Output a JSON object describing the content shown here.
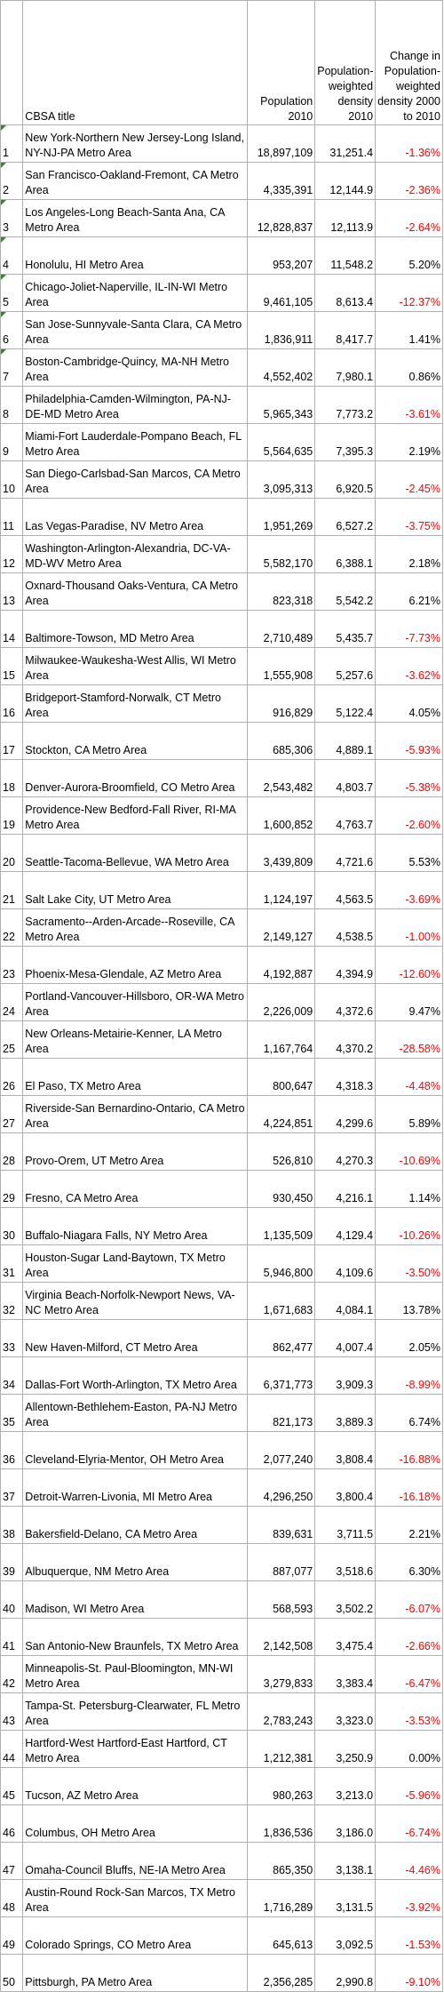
{
  "headers": {
    "rank": "",
    "title": "CBSA title",
    "population": "Population 2010",
    "density": "Population-weighted density 2010",
    "change": "Change in Population-weighted density 2000 to 2010"
  },
  "rows": [
    {
      "rank": "1",
      "title": "New York-Northern New Jersey-Long Island, NY-NJ-PA Metro Area",
      "population": "18,897,109",
      "density": "31,251.4",
      "change": "-1.36%",
      "neg": true
    },
    {
      "rank": "2",
      "title": "San Francisco-Oakland-Fremont, CA Metro Area",
      "population": "4,335,391",
      "density": "12,144.9",
      "change": "-2.36%",
      "neg": true
    },
    {
      "rank": "3",
      "title": "Los Angeles-Long Beach-Santa Ana, CA Metro Area",
      "population": "12,828,837",
      "density": "12,113.9",
      "change": "-2.64%",
      "neg": true
    },
    {
      "rank": "4",
      "title": "Honolulu, HI Metro Area",
      "population": "953,207",
      "density": "11,548.2",
      "change": "5.20%",
      "neg": false
    },
    {
      "rank": "5",
      "title": "Chicago-Joliet-Naperville, IL-IN-WI Metro Area",
      "population": "9,461,105",
      "density": "8,613.4",
      "change": "-12.37%",
      "neg": true
    },
    {
      "rank": "6",
      "title": "San Jose-Sunnyvale-Santa Clara, CA Metro Area",
      "population": "1,836,911",
      "density": "8,417.7",
      "change": "1.41%",
      "neg": false
    },
    {
      "rank": "7",
      "title": "Boston-Cambridge-Quincy, MA-NH Metro Area",
      "population": "4,552,402",
      "density": "7,980.1",
      "change": "0.86%",
      "neg": false
    },
    {
      "rank": "8",
      "title": "Philadelphia-Camden-Wilmington, PA-NJ-DE-MD Metro Area",
      "population": "5,965,343",
      "density": "7,773.2",
      "change": "-3.61%",
      "neg": true
    },
    {
      "rank": "9",
      "title": "Miami-Fort Lauderdale-Pompano Beach, FL Metro Area",
      "population": "5,564,635",
      "density": "7,395.3",
      "change": "2.19%",
      "neg": false
    },
    {
      "rank": "10",
      "title": "San Diego-Carlsbad-San Marcos, CA Metro Area",
      "population": "3,095,313",
      "density": "6,920.5",
      "change": "-2.45%",
      "neg": true
    },
    {
      "rank": "11",
      "title": "Las Vegas-Paradise, NV Metro Area",
      "population": "1,951,269",
      "density": "6,527.2",
      "change": "-3.75%",
      "neg": true
    },
    {
      "rank": "12",
      "title": "Washington-Arlington-Alexandria, DC-VA-MD-WV Metro Area",
      "population": "5,582,170",
      "density": "6,388.1",
      "change": "2.18%",
      "neg": false
    },
    {
      "rank": "13",
      "title": "Oxnard-Thousand Oaks-Ventura, CA Metro Area",
      "population": "823,318",
      "density": "5,542.2",
      "change": "6.21%",
      "neg": false
    },
    {
      "rank": "14",
      "title": "Baltimore-Towson, MD Metro Area",
      "population": "2,710,489",
      "density": "5,435.7",
      "change": "-7.73%",
      "neg": true
    },
    {
      "rank": "15",
      "title": "Milwaukee-Waukesha-West Allis, WI Metro Area",
      "population": "1,555,908",
      "density": "5,257.6",
      "change": "-3.62%",
      "neg": true
    },
    {
      "rank": "16",
      "title": "Bridgeport-Stamford-Norwalk, CT Metro Area",
      "population": "916,829",
      "density": "5,122.4",
      "change": "4.05%",
      "neg": false
    },
    {
      "rank": "17",
      "title": "Stockton, CA Metro Area",
      "population": "685,306",
      "density": "4,889.1",
      "change": "-5.93%",
      "neg": true
    },
    {
      "rank": "18",
      "title": "Denver-Aurora-Broomfield, CO Metro Area",
      "population": "2,543,482",
      "density": "4,803.7",
      "change": "-5.38%",
      "neg": true
    },
    {
      "rank": "19",
      "title": "Providence-New Bedford-Fall River, RI-MA Metro Area",
      "population": "1,600,852",
      "density": "4,763.7",
      "change": "-2.60%",
      "neg": true
    },
    {
      "rank": "20",
      "title": "Seattle-Tacoma-Bellevue, WA Metro Area",
      "population": "3,439,809",
      "density": "4,721.6",
      "change": "5.53%",
      "neg": false
    },
    {
      "rank": "21",
      "title": "Salt Lake City, UT Metro Area",
      "population": "1,124,197",
      "density": "4,563.5",
      "change": "-3.69%",
      "neg": true
    },
    {
      "rank": "22",
      "title": "Sacramento--Arden-Arcade--Roseville, CA Metro Area",
      "population": "2,149,127",
      "density": "4,538.5",
      "change": "-1.00%",
      "neg": true
    },
    {
      "rank": "23",
      "title": "Phoenix-Mesa-Glendale, AZ Metro Area",
      "population": "4,192,887",
      "density": "4,394.9",
      "change": "-12.60%",
      "neg": true
    },
    {
      "rank": "24",
      "title": "Portland-Vancouver-Hillsboro, OR-WA Metro Area",
      "population": "2,226,009",
      "density": "4,372.6",
      "change": "9.47%",
      "neg": false
    },
    {
      "rank": "25",
      "title": "New Orleans-Metairie-Kenner, LA Metro Area",
      "population": "1,167,764",
      "density": "4,370.2",
      "change": "-28.58%",
      "neg": true
    },
    {
      "rank": "26",
      "title": "El Paso, TX Metro Area",
      "population": "800,647",
      "density": "4,318.3",
      "change": "-4.48%",
      "neg": true
    },
    {
      "rank": "27",
      "title": "Riverside-San Bernardino-Ontario, CA Metro Area",
      "population": "4,224,851",
      "density": "4,299.6",
      "change": "5.89%",
      "neg": false
    },
    {
      "rank": "28",
      "title": "Provo-Orem, UT Metro Area",
      "population": "526,810",
      "density": "4,270.3",
      "change": "-10.69%",
      "neg": true
    },
    {
      "rank": "29",
      "title": "Fresno, CA Metro Area",
      "population": "930,450",
      "density": "4,216.1",
      "change": "1.14%",
      "neg": false
    },
    {
      "rank": "30",
      "title": "Buffalo-Niagara Falls, NY Metro Area",
      "population": "1,135,509",
      "density": "4,129.4",
      "change": "-10.26%",
      "neg": true
    },
    {
      "rank": "31",
      "title": "Houston-Sugar Land-Baytown, TX Metro Area",
      "population": "5,946,800",
      "density": "4,109.6",
      "change": "-3.50%",
      "neg": true
    },
    {
      "rank": "32",
      "title": "Virginia Beach-Norfolk-Newport News, VA-NC Metro Area",
      "population": "1,671,683",
      "density": "4,084.1",
      "change": "13.78%",
      "neg": false
    },
    {
      "rank": "33",
      "title": "New Haven-Milford, CT Metro Area",
      "population": "862,477",
      "density": "4,007.4",
      "change": "2.05%",
      "neg": false
    },
    {
      "rank": "34",
      "title": "Dallas-Fort Worth-Arlington, TX Metro Area",
      "population": "6,371,773",
      "density": "3,909.3",
      "change": "-8.99%",
      "neg": true
    },
    {
      "rank": "35",
      "title": "Allentown-Bethlehem-Easton, PA-NJ Metro Area",
      "population": "821,173",
      "density": "3,889.3",
      "change": "6.74%",
      "neg": false
    },
    {
      "rank": "36",
      "title": "Cleveland-Elyria-Mentor, OH Metro Area",
      "population": "2,077,240",
      "density": "3,808.4",
      "change": "-16.88%",
      "neg": true
    },
    {
      "rank": "37",
      "title": "Detroit-Warren-Livonia, MI Metro Area",
      "population": "4,296,250",
      "density": "3,800.4",
      "change": "-16.18%",
      "neg": true
    },
    {
      "rank": "38",
      "title": "Bakersfield-Delano, CA Metro Area",
      "population": "839,631",
      "density": "3,711.5",
      "change": "2.21%",
      "neg": false
    },
    {
      "rank": "39",
      "title": "Albuquerque, NM Metro Area",
      "population": "887,077",
      "density": "3,518.6",
      "change": "6.30%",
      "neg": false
    },
    {
      "rank": "40",
      "title": "Madison, WI Metro Area",
      "population": "568,593",
      "density": "3,502.2",
      "change": "-6.07%",
      "neg": true
    },
    {
      "rank": "41",
      "title": "San Antonio-New Braunfels, TX Metro Area",
      "population": "2,142,508",
      "density": "3,475.4",
      "change": "-2.66%",
      "neg": true
    },
    {
      "rank": "42",
      "title": "Minneapolis-St. Paul-Bloomington, MN-WI Metro Area",
      "population": "3,279,833",
      "density": "3,383.4",
      "change": "-6.47%",
      "neg": true
    },
    {
      "rank": "43",
      "title": "Tampa-St. Petersburg-Clearwater, FL Metro Area",
      "population": "2,783,243",
      "density": "3,323.0",
      "change": "-3.53%",
      "neg": true
    },
    {
      "rank": "44",
      "title": "Hartford-West Hartford-East Hartford, CT Metro Area",
      "population": "1,212,381",
      "density": "3,250.9",
      "change": "0.00%",
      "neg": false
    },
    {
      "rank": "45",
      "title": "Tucson, AZ Metro Area",
      "population": "980,263",
      "density": "3,213.0",
      "change": "-5.96%",
      "neg": true
    },
    {
      "rank": "46",
      "title": "Columbus, OH Metro Area",
      "population": "1,836,536",
      "density": "3,186.0",
      "change": "-6.74%",
      "neg": true
    },
    {
      "rank": "47",
      "title": "Omaha-Council Bluffs, NE-IA Metro Area",
      "population": "865,350",
      "density": "3,138.1",
      "change": "-4.46%",
      "neg": true
    },
    {
      "rank": "48",
      "title": "Austin-Round Rock-San Marcos, TX Metro Area",
      "population": "1,716,289",
      "density": "3,131.5",
      "change": "-3.92%",
      "neg": true
    },
    {
      "rank": "49",
      "title": "Colorado Springs, CO Metro Area",
      "population": "645,613",
      "density": "3,092.5",
      "change": "-1.53%",
      "neg": true
    },
    {
      "rank": "50",
      "title": "Pittsburgh, PA Metro Area",
      "population": "2,356,285",
      "density": "2,990.8",
      "change": "-9.10%",
      "neg": true
    }
  ],
  "colors": {
    "negative": "#ff0000",
    "flag": "#2e8b20"
  },
  "flagged_rows": 7
}
